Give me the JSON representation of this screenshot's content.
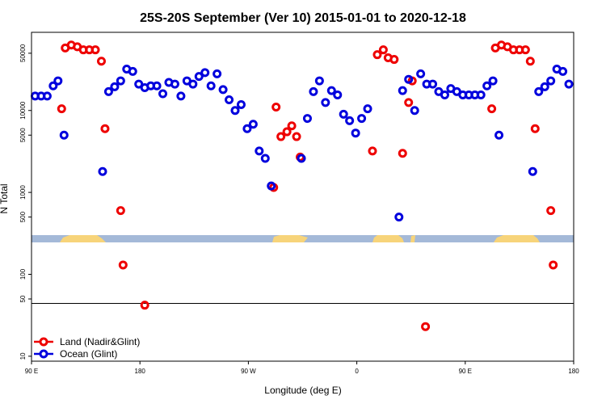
{
  "chart_data": {
    "type": "scatter",
    "title": "25S-20S September (Ver 10)   2015-01-01 to 2020-12-18",
    "xlabel": "Longitude (deg E)",
    "ylabel": "N Total",
    "x_ticks": [
      {
        "value": 90,
        "label": "90 E"
      },
      {
        "value": 180,
        "label": "180"
      },
      {
        "value": 270,
        "label": "90 W"
      },
      {
        "value": 360,
        "label": "0"
      },
      {
        "value": 450,
        "label": "90 E"
      },
      {
        "value": 540,
        "label": "180"
      }
    ],
    "xlim": [
      90,
      540
    ],
    "y_scale": "log",
    "ylim": [
      8.7,
      90000
    ],
    "y_ticks": [
      {
        "value": 10,
        "label": "10"
      },
      {
        "value": 50,
        "label": "50"
      },
      {
        "value": 100,
        "label": "100"
      },
      {
        "value": 500,
        "label": "500"
      },
      {
        "value": 1000,
        "label": "1000"
      },
      {
        "value": 5000,
        "label": "5000"
      },
      {
        "value": 10000,
        "label": "10000"
      },
      {
        "value": 50000,
        "label": "50000"
      }
    ],
    "reference_line": 50,
    "grid": false,
    "legend_position": "bottom-left",
    "series": [
      {
        "name": "Land (Nadir&Glint)",
        "color": "#ee0000",
        "points": [
          [
            115,
            10500
          ],
          [
            118,
            58000
          ],
          [
            123,
            63000
          ],
          [
            128,
            60000
          ],
          [
            133,
            55000
          ],
          [
            138,
            55000
          ],
          [
            143,
            55000
          ],
          [
            148,
            40000
          ],
          [
            151,
            6000
          ],
          [
            164,
            600
          ],
          [
            166,
            130
          ],
          [
            184,
            42
          ],
          [
            291,
            1150
          ],
          [
            293,
            11000
          ],
          [
            297,
            4800
          ],
          [
            302,
            5500
          ],
          [
            306,
            6500
          ],
          [
            310,
            4800
          ],
          [
            313,
            2700
          ],
          [
            373,
            3200
          ],
          [
            377,
            48000
          ],
          [
            382,
            55000
          ],
          [
            386,
            44000
          ],
          [
            391,
            42000
          ],
          [
            398,
            3000
          ],
          [
            403,
            12500
          ],
          [
            406,
            23000
          ],
          [
            417,
            23
          ],
          [
            472,
            10500
          ],
          [
            475,
            58000
          ],
          [
            480,
            63000
          ],
          [
            485,
            60000
          ],
          [
            490,
            55000
          ],
          [
            495,
            55000
          ],
          [
            500,
            55000
          ],
          [
            504,
            40000
          ],
          [
            508,
            6000
          ],
          [
            521,
            600
          ],
          [
            523,
            130
          ]
        ]
      },
      {
        "name": "Ocean (Glint)",
        "color": "#0000dd",
        "points": [
          [
            93,
            15000
          ],
          [
            98,
            15000
          ],
          [
            103,
            15000
          ],
          [
            108,
            20000
          ],
          [
            112,
            23000
          ],
          [
            117,
            5000
          ],
          [
            149,
            1800
          ],
          [
            154,
            17000
          ],
          [
            159,
            19500
          ],
          [
            164,
            23000
          ],
          [
            169,
            32000
          ],
          [
            174,
            30000
          ],
          [
            179,
            21000
          ],
          [
            184,
            19000
          ],
          [
            189,
            20000
          ],
          [
            194,
            20000
          ],
          [
            199,
            16000
          ],
          [
            204,
            22000
          ],
          [
            209,
            21000
          ],
          [
            214,
            15000
          ],
          [
            219,
            23000
          ],
          [
            224,
            21000
          ],
          [
            229,
            26000
          ],
          [
            234,
            29000
          ],
          [
            239,
            20000
          ],
          [
            244,
            28000
          ],
          [
            249,
            18000
          ],
          [
            254,
            13500
          ],
          [
            259,
            10000
          ],
          [
            264,
            11800
          ],
          [
            269,
            6000
          ],
          [
            274,
            6800
          ],
          [
            279,
            3200
          ],
          [
            284,
            2600
          ],
          [
            289,
            1200
          ],
          [
            314,
            2600
          ],
          [
            319,
            8000
          ],
          [
            324,
            17000
          ],
          [
            329,
            23000
          ],
          [
            334,
            12500
          ],
          [
            339,
            17500
          ],
          [
            344,
            15500
          ],
          [
            349,
            9000
          ],
          [
            354,
            7500
          ],
          [
            359,
            5300
          ],
          [
            364,
            8000
          ],
          [
            369,
            10500
          ],
          [
            395,
            500
          ],
          [
            398,
            17500
          ],
          [
            403,
            24000
          ],
          [
            408,
            10000
          ],
          [
            413,
            28000
          ],
          [
            418,
            21000
          ],
          [
            423,
            21000
          ],
          [
            428,
            17000
          ],
          [
            433,
            15500
          ],
          [
            438,
            18500
          ],
          [
            443,
            17000
          ],
          [
            448,
            15500
          ],
          [
            453,
            15500
          ],
          [
            458,
            15500
          ],
          [
            463,
            15500
          ],
          [
            468,
            20000
          ],
          [
            473,
            23000
          ],
          [
            478,
            5000
          ],
          [
            506,
            1800
          ],
          [
            511,
            17000
          ],
          [
            516,
            19500
          ],
          [
            521,
            23000
          ],
          [
            526,
            32000
          ],
          [
            531,
            30000
          ],
          [
            536,
            21000
          ]
        ]
      }
    ],
    "map_strip": {
      "y_range": [
        222,
        285
      ],
      "ocean_color": "#a4b9d8",
      "land_color": "#f7d47a"
    }
  }
}
